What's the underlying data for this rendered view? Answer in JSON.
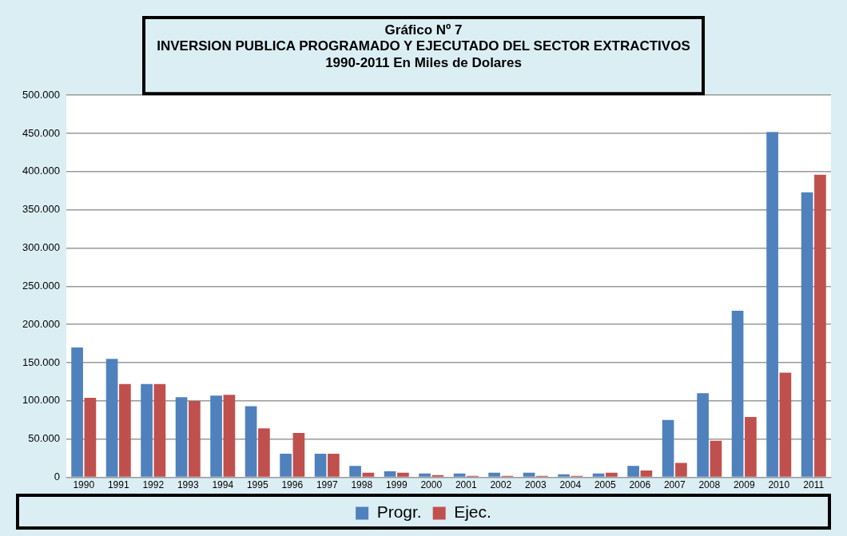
{
  "chart_data": {
    "type": "bar",
    "title": "Gráfico Nº 7\nINVERSION PUBLICA PROGRAMADO Y EJECUTADO DEL SECTOR EXTRACTIVOS\n1990-2011 En Miles de Dolares",
    "categories": [
      "1990",
      "1991",
      "1992",
      "1993",
      "1994",
      "1995",
      "1996",
      "1997",
      "1998",
      "1999",
      "2000",
      "2001",
      "2002",
      "2003",
      "2004",
      "2005",
      "2006",
      "2007",
      "2008",
      "2009",
      "2010",
      "2011"
    ],
    "series": [
      {
        "name": "Progr.",
        "color": "#4f81bd",
        "values": [
          170000,
          155000,
          122000,
          105000,
          107000,
          93000,
          31000,
          31000,
          15000,
          8000,
          5000,
          5000,
          6000,
          6000,
          4000,
          5000,
          15000,
          75000,
          110000,
          218000,
          452000,
          373000
        ]
      },
      {
        "name": "Ejec.",
        "color": "#c0504d",
        "values": [
          104000,
          122000,
          122000,
          100000,
          108000,
          64000,
          58000,
          31000,
          6000,
          6000,
          3000,
          2000,
          2000,
          2000,
          2000,
          6000,
          9000,
          19000,
          48000,
          79000,
          137000,
          396000
        ]
      }
    ],
    "ylim": [
      0,
      500000
    ],
    "yticks": [
      {
        "value": 0,
        "label": "0"
      },
      {
        "value": 50000,
        "label": "50.000"
      },
      {
        "value": 100000,
        "label": "100.000"
      },
      {
        "value": 150000,
        "label": "150.000"
      },
      {
        "value": 200000,
        "label": "200.000"
      },
      {
        "value": 250000,
        "label": "250.000"
      },
      {
        "value": 300000,
        "label": "300.000"
      },
      {
        "value": 350000,
        "label": "350.000"
      },
      {
        "value": 400000,
        "label": "400.000"
      },
      {
        "value": 450000,
        "label": "450.000"
      },
      {
        "value": 500000,
        "label": "500.000"
      }
    ],
    "grid": "y",
    "legend": "bottom"
  }
}
